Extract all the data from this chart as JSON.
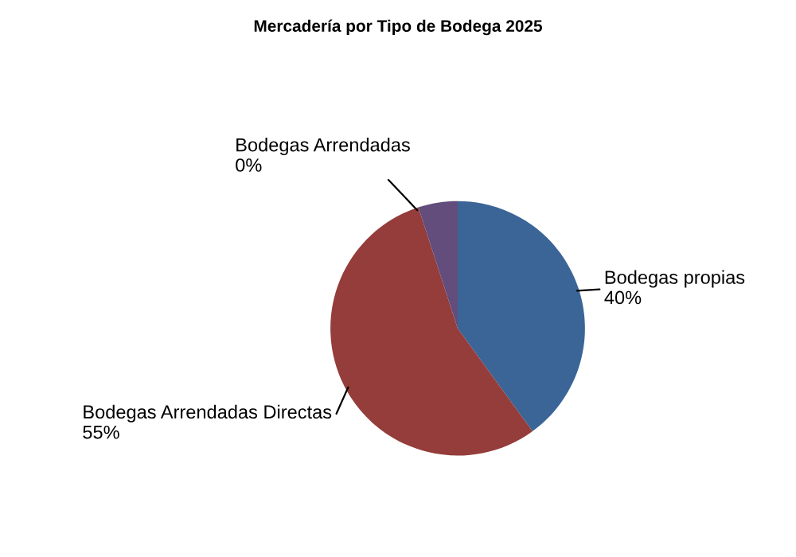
{
  "chart_data": {
    "type": "pie",
    "title": "Mercadería por Tipo de Bodega 2025",
    "categories": [
      "Bodegas propias",
      "Bodegas Arrendadas Directas",
      "Bodegas Arrendadas",
      null
    ],
    "values": [
      40,
      55,
      0,
      5
    ],
    "value_labels": [
      "40%",
      "55%",
      "0%",
      null
    ],
    "colors": [
      "#3b6597",
      "#943d3b",
      "#7c8c3e",
      "#624d7c"
    ],
    "legend": false
  }
}
